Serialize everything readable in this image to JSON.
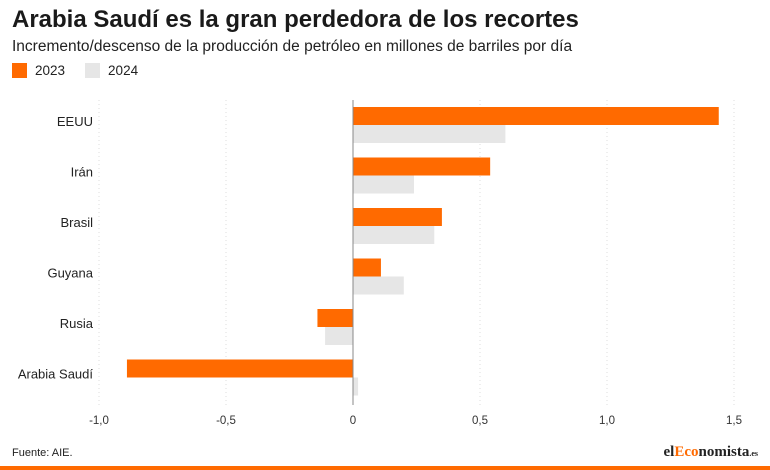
{
  "header": {
    "title": "Arabia Saudí es la gran perdedora de los recortes",
    "subtitle": "Incremento/descenso de la producción de petróleo en millones de barriles por día"
  },
  "footer": {
    "source": "Fuente: AIE.",
    "logo": {
      "prefix": "el",
      "accent": "Eco",
      "suffix": "nomista",
      "tld": ".es"
    }
  },
  "colors": {
    "accent": "#ff6a00",
    "series_2023": "#ff6a00",
    "series_2024": "#e6e6e6",
    "grid": "#dddddd",
    "zero_line": "#888888"
  },
  "chart_data": {
    "type": "bar",
    "orientation": "horizontal",
    "categories": [
      "EEUU",
      "Irán",
      "Brasil",
      "Guyana",
      "Rusia",
      "Arabia Saudí"
    ],
    "series": [
      {
        "name": "2023",
        "values": [
          1.44,
          0.54,
          0.35,
          0.11,
          -0.14,
          -0.89
        ]
      },
      {
        "name": "2024",
        "values": [
          0.6,
          0.24,
          0.32,
          0.2,
          -0.11,
          0.02
        ]
      }
    ],
    "xlim": [
      -1.0,
      1.5
    ],
    "xticks": [
      -1.0,
      -0.5,
      0,
      0.5,
      1.0,
      1.5
    ],
    "xtick_labels": [
      "-1,0",
      "-0,5",
      "0",
      "0,5",
      "1,0",
      "1,5"
    ],
    "grid": true,
    "legend_position": "top-left"
  }
}
